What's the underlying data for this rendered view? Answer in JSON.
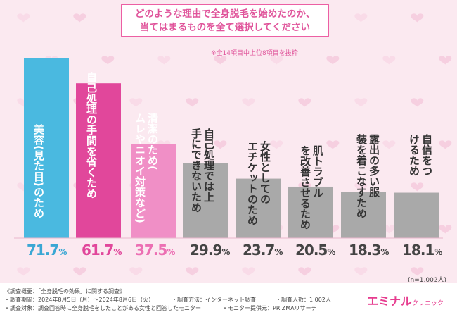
{
  "question": {
    "line1": "どのような理由で全身脱毛を始めたのか、",
    "line2": "当てはまるものを全て選択してください"
  },
  "note": "※全14項目中上位8項目を抜粋",
  "sample_note": "(n=1,002人)",
  "colors": {
    "bar1": "#4ab9e0",
    "bar2": "#e1479b",
    "bar3": "#f08fc6",
    "bar_rest": "#a9a9a9",
    "accent": "#ec5fa3"
  },
  "chart_data": {
    "type": "bar",
    "categories": [
      "美容(見た目)のため",
      "自己処理の手間を省くため",
      "清潔のため(ムレやニオイ対策など)",
      "自己処理では上手にできないため",
      "女性としてのエチケットのため",
      "肌トラブルを改善させるため",
      "露出の多い服装を着こなすため",
      "自信をつけるため"
    ],
    "values": [
      71.7,
      61.7,
      37.5,
      29.9,
      23.7,
      20.5,
      18.3,
      18.1
    ],
    "value_labels": [
      "71.7%",
      "61.7%",
      "37.5%",
      "29.9%",
      "23.7%",
      "20.5%",
      "18.3%",
      "18.1%"
    ],
    "unit": "%",
    "ylim": [
      0,
      80
    ]
  },
  "footer": {
    "overview": "《調査概要：「全身脱毛の効果」に関する調査》",
    "period": "・調査期間：2024年8月5日（月）～2024年8月6日（火）",
    "method": "・調査方法：インターネット調査",
    "count": "・調査人数：1,002人",
    "target": "・調査対象：調査回答時に全身脱毛をしたことがある女性と回答したモニター",
    "provider": "・モニター提供元：PRIZMAリサーチ"
  },
  "logo": {
    "main": "エミナル",
    "sub": "クリニック"
  }
}
